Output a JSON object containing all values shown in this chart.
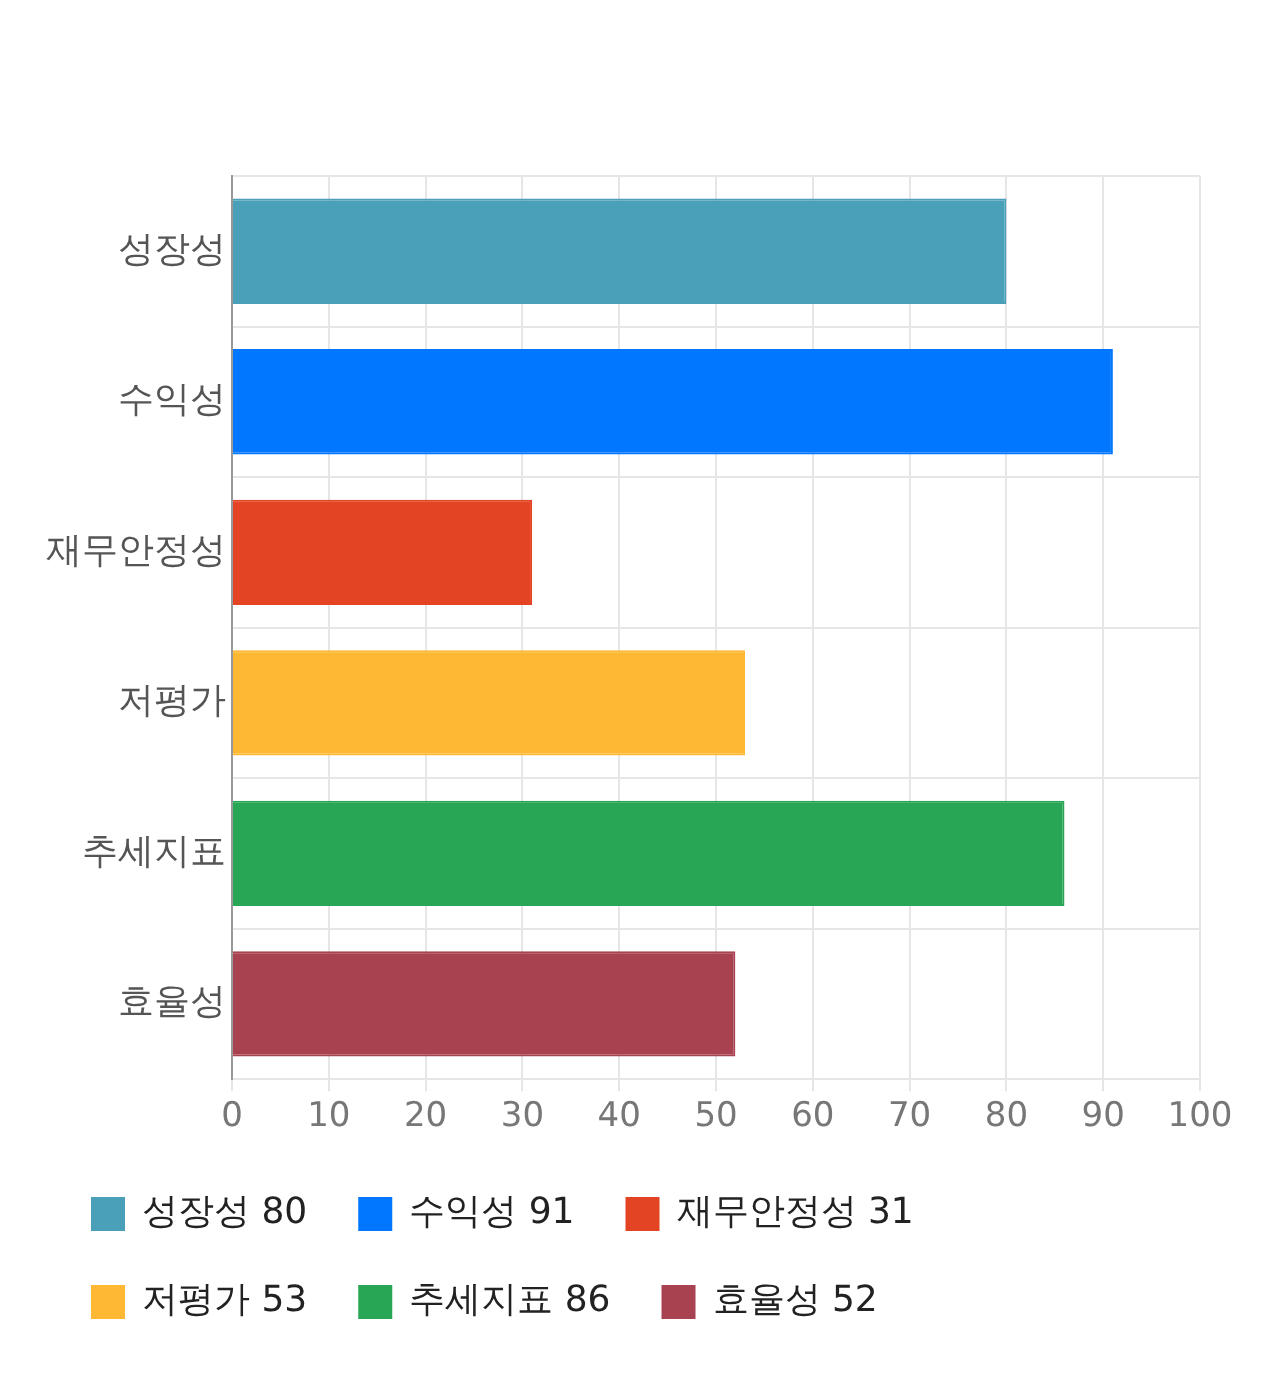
{
  "chart_data": {
    "type": "bar",
    "orientation": "horizontal",
    "stacked": true,
    "categories": [
      "성장성",
      "수익성",
      "재무안정성",
      "저평가",
      "추세지표",
      "효율성"
    ],
    "series": [
      {
        "name": "성장성 80",
        "color": "#4aa0b9",
        "values": [
          80,
          null,
          null,
          null,
          null,
          null
        ]
      },
      {
        "name": "수익성 91",
        "color": "#0077fe",
        "values": [
          null,
          91,
          null,
          null,
          null,
          null
        ]
      },
      {
        "name": "재무안정성 31",
        "color": "#e34424",
        "values": [
          null,
          null,
          31,
          null,
          null,
          null
        ]
      },
      {
        "name": "저평가 53",
        "color": "#feb833",
        "values": [
          null,
          null,
          null,
          53,
          null,
          null
        ]
      },
      {
        "name": "추세지표 86",
        "color": "#28a656",
        "values": [
          null,
          null,
          null,
          null,
          86,
          null
        ]
      },
      {
        "name": "효율성 52",
        "color": "#a84250",
        "values": [
          null,
          null,
          null,
          null,
          null,
          52
        ]
      }
    ],
    "xlim": [
      0,
      100
    ],
    "xticks": [
      0,
      10,
      20,
      30,
      40,
      50,
      60,
      70,
      80,
      90,
      100
    ],
    "grid": true,
    "legend": "bottom"
  }
}
